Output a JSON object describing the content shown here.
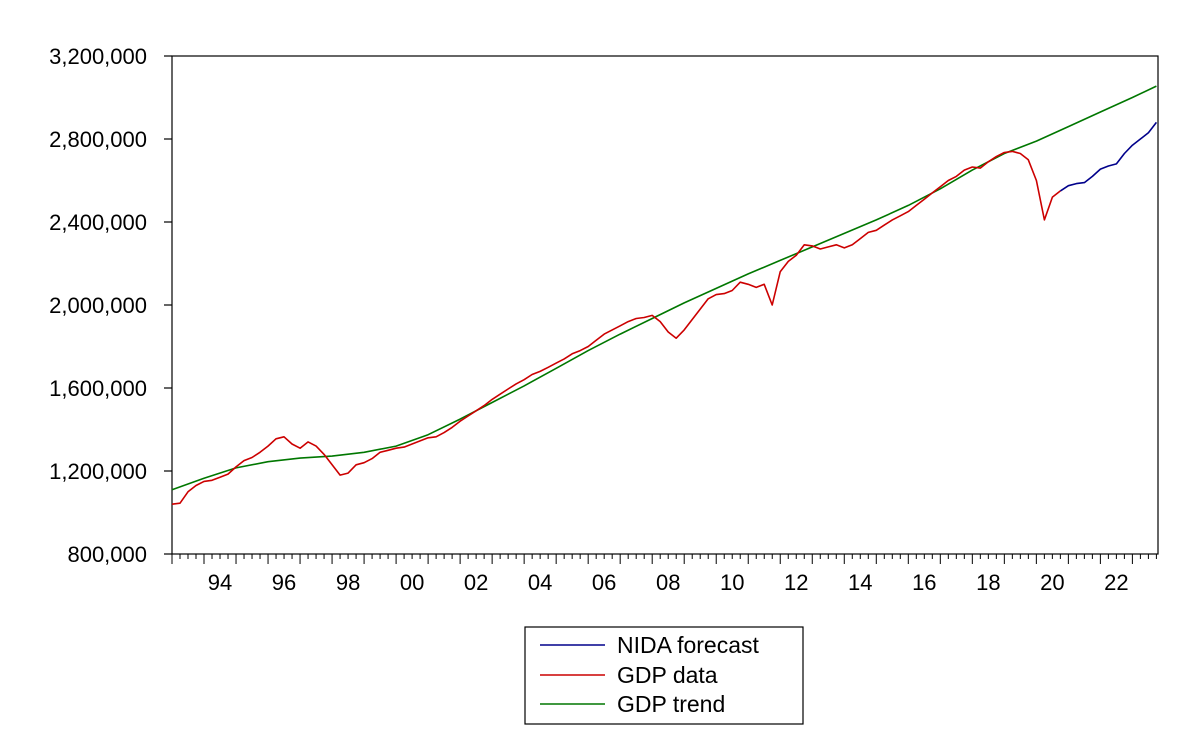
{
  "chart_data": {
    "type": "line",
    "title": "",
    "xlabel": "",
    "ylabel": "",
    "xlim": [
      1993.0,
      2022.5
    ],
    "ylim": [
      800000,
      3200000
    ],
    "y_ticks": [
      800000,
      1200000,
      1600000,
      2000000,
      2400000,
      2800000,
      3200000
    ],
    "y_tick_labels": [
      "800,000",
      "1,200,000",
      "1,600,000",
      "2,000,000",
      "2,400,000",
      "2,800,000",
      "3,200,000"
    ],
    "x_ticks": [
      1994,
      1996,
      1998,
      2000,
      2002,
      2004,
      2006,
      2008,
      2010,
      2012,
      2014,
      2016,
      2018,
      2020,
      2022
    ],
    "x_tick_labels": [
      "94",
      "96",
      "98",
      "00",
      "02",
      "04",
      "06",
      "08",
      "10",
      "12",
      "14",
      "16",
      "18",
      "20",
      "22"
    ],
    "grid": false,
    "legend_position": "bottom-center",
    "series": [
      {
        "name": "NIDA forecast",
        "color": "#00008b",
        "points": [
          [
            2020.75,
            2550000
          ],
          [
            2021.0,
            2575000
          ],
          [
            2021.25,
            2585000
          ],
          [
            2021.5,
            2590000
          ],
          [
            2021.75,
            2620000
          ],
          [
            2022.0,
            2655000
          ],
          [
            2022.25,
            2670000
          ],
          [
            2022.5,
            2680000
          ],
          [
            2022.75,
            2730000
          ],
          [
            2023.0,
            2770000
          ],
          [
            2023.25,
            2800000
          ],
          [
            2023.5,
            2830000
          ],
          [
            2023.75,
            2880000
          ]
        ]
      },
      {
        "name": "GDP data",
        "color": "#cc0000",
        "points": [
          [
            1993.0,
            1040000
          ],
          [
            1993.25,
            1045000
          ],
          [
            1993.5,
            1100000
          ],
          [
            1993.75,
            1130000
          ],
          [
            1994.0,
            1150000
          ],
          [
            1994.25,
            1155000
          ],
          [
            1994.5,
            1170000
          ],
          [
            1994.75,
            1185000
          ],
          [
            1995.0,
            1220000
          ],
          [
            1995.25,
            1250000
          ],
          [
            1995.5,
            1265000
          ],
          [
            1995.75,
            1290000
          ],
          [
            1996.0,
            1320000
          ],
          [
            1996.25,
            1355000
          ],
          [
            1996.5,
            1365000
          ],
          [
            1996.75,
            1330000
          ],
          [
            1997.0,
            1310000
          ],
          [
            1997.25,
            1340000
          ],
          [
            1997.5,
            1320000
          ],
          [
            1997.75,
            1280000
          ],
          [
            1998.0,
            1230000
          ],
          [
            1998.25,
            1180000
          ],
          [
            1998.5,
            1190000
          ],
          [
            1998.75,
            1230000
          ],
          [
            1999.0,
            1240000
          ],
          [
            1999.25,
            1260000
          ],
          [
            1999.5,
            1290000
          ],
          [
            1999.75,
            1300000
          ],
          [
            2000.0,
            1310000
          ],
          [
            2000.25,
            1315000
          ],
          [
            2000.5,
            1330000
          ],
          [
            2000.75,
            1345000
          ],
          [
            2001.0,
            1360000
          ],
          [
            2001.25,
            1365000
          ],
          [
            2001.5,
            1385000
          ],
          [
            2001.75,
            1410000
          ],
          [
            2002.0,
            1440000
          ],
          [
            2002.25,
            1465000
          ],
          [
            2002.5,
            1490000
          ],
          [
            2002.75,
            1515000
          ],
          [
            2003.0,
            1545000
          ],
          [
            2003.25,
            1570000
          ],
          [
            2003.5,
            1595000
          ],
          [
            2003.75,
            1620000
          ],
          [
            2004.0,
            1640000
          ],
          [
            2004.25,
            1665000
          ],
          [
            2004.5,
            1680000
          ],
          [
            2004.75,
            1700000
          ],
          [
            2005.0,
            1720000
          ],
          [
            2005.25,
            1740000
          ],
          [
            2005.5,
            1765000
          ],
          [
            2005.75,
            1780000
          ],
          [
            2006.0,
            1800000
          ],
          [
            2006.25,
            1830000
          ],
          [
            2006.5,
            1860000
          ],
          [
            2006.75,
            1880000
          ],
          [
            2007.0,
            1900000
          ],
          [
            2007.25,
            1920000
          ],
          [
            2007.5,
            1935000
          ],
          [
            2007.75,
            1940000
          ],
          [
            2008.0,
            1950000
          ],
          [
            2008.25,
            1920000
          ],
          [
            2008.5,
            1870000
          ],
          [
            2008.75,
            1840000
          ],
          [
            2009.0,
            1880000
          ],
          [
            2009.25,
            1930000
          ],
          [
            2009.5,
            1980000
          ],
          [
            2009.75,
            2030000
          ],
          [
            2010.0,
            2050000
          ],
          [
            2010.25,
            2055000
          ],
          [
            2010.5,
            2070000
          ],
          [
            2010.75,
            2110000
          ],
          [
            2011.0,
            2100000
          ],
          [
            2011.25,
            2085000
          ],
          [
            2011.5,
            2100000
          ],
          [
            2011.75,
            2000000
          ],
          [
            2012.0,
            2160000
          ],
          [
            2012.25,
            2210000
          ],
          [
            2012.5,
            2240000
          ],
          [
            2012.75,
            2290000
          ],
          [
            2013.0,
            2285000
          ],
          [
            2013.25,
            2270000
          ],
          [
            2013.5,
            2280000
          ],
          [
            2013.75,
            2290000
          ],
          [
            2014.0,
            2275000
          ],
          [
            2014.25,
            2290000
          ],
          [
            2014.5,
            2320000
          ],
          [
            2014.75,
            2350000
          ],
          [
            2015.0,
            2360000
          ],
          [
            2015.25,
            2385000
          ],
          [
            2015.5,
            2410000
          ],
          [
            2015.75,
            2430000
          ],
          [
            2016.0,
            2450000
          ],
          [
            2016.25,
            2480000
          ],
          [
            2016.5,
            2510000
          ],
          [
            2016.75,
            2540000
          ],
          [
            2017.0,
            2570000
          ],
          [
            2017.25,
            2600000
          ],
          [
            2017.5,
            2620000
          ],
          [
            2017.75,
            2650000
          ],
          [
            2018.0,
            2665000
          ],
          [
            2018.25,
            2660000
          ],
          [
            2018.5,
            2690000
          ],
          [
            2018.75,
            2715000
          ],
          [
            2019.0,
            2735000
          ],
          [
            2019.25,
            2740000
          ],
          [
            2019.5,
            2730000
          ],
          [
            2019.75,
            2700000
          ],
          [
            2020.0,
            2600000
          ],
          [
            2020.25,
            2410000
          ],
          [
            2020.5,
            2520000
          ],
          [
            2020.75,
            2550000
          ]
        ]
      },
      {
        "name": "GDP trend",
        "color": "#007700",
        "points": [
          [
            1993.0,
            1110000
          ],
          [
            1994.0,
            1165000
          ],
          [
            1995.0,
            1215000
          ],
          [
            1996.0,
            1245000
          ],
          [
            1997.0,
            1262000
          ],
          [
            1998.0,
            1272000
          ],
          [
            1999.0,
            1290000
          ],
          [
            2000.0,
            1320000
          ],
          [
            2001.0,
            1375000
          ],
          [
            2002.0,
            1450000
          ],
          [
            2003.0,
            1530000
          ],
          [
            2004.0,
            1610000
          ],
          [
            2005.0,
            1695000
          ],
          [
            2006.0,
            1780000
          ],
          [
            2007.0,
            1860000
          ],
          [
            2008.0,
            1935000
          ],
          [
            2009.0,
            2010000
          ],
          [
            2010.0,
            2080000
          ],
          [
            2011.0,
            2150000
          ],
          [
            2012.0,
            2215000
          ],
          [
            2013.0,
            2280000
          ],
          [
            2014.0,
            2345000
          ],
          [
            2015.0,
            2410000
          ],
          [
            2016.0,
            2480000
          ],
          [
            2017.0,
            2560000
          ],
          [
            2018.0,
            2650000
          ],
          [
            2019.0,
            2730000
          ],
          [
            2020.0,
            2790000
          ],
          [
            2021.0,
            2860000
          ],
          [
            2022.0,
            2930000
          ],
          [
            2023.0,
            3000000
          ],
          [
            2023.75,
            3055000
          ]
        ]
      }
    ]
  }
}
